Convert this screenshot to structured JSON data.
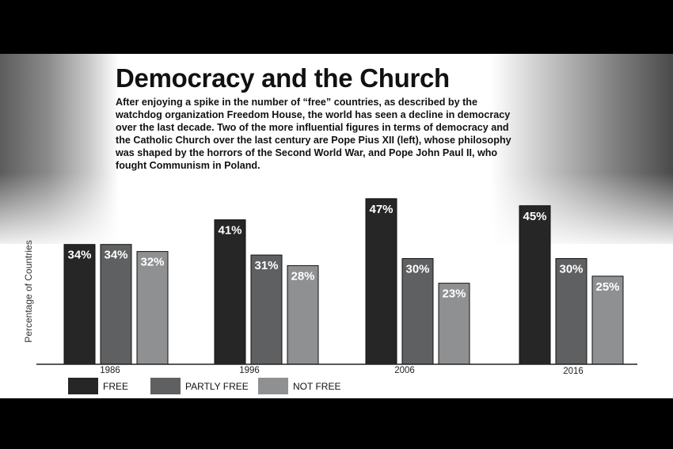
{
  "title": "Democracy and the Church",
  "description": "After enjoying a spike in the number of “free” countries, as described by the watchdog organization Freedom House, the world has seen a decline in democracy over the last decade. Two of the more influential figures in terms of democracy and the Catholic Church over the last century are Pope Pius XII (left), whose philosophy was shaped by the horrors of the Second World War, and Pope John Paul II, who fought Communism in Poland.",
  "colors": {
    "free": "#262626",
    "partly_free": "#5e6061",
    "not_free": "#8e9092"
  },
  "chart_data": {
    "type": "bar",
    "categories": [
      "1986",
      "1996",
      "2006",
      "2016"
    ],
    "series": [
      {
        "name": "FREE",
        "values": [
          34,
          41,
          47,
          45
        ]
      },
      {
        "name": "PARTLY FREE",
        "values": [
          34,
          31,
          30,
          30
        ]
      },
      {
        "name": "NOT FREE",
        "values": [
          32,
          28,
          23,
          25
        ]
      }
    ],
    "data_labels": [
      [
        "34%",
        "41%",
        "47%",
        "45%"
      ],
      [
        "34%",
        "31%",
        "30%",
        "30%"
      ],
      [
        "32%",
        "28%",
        "23%",
        "25%"
      ]
    ],
    "ylabel": "Percentage of Countries",
    "xlabel": "",
    "legend": "bottom-left",
    "grid": false
  }
}
